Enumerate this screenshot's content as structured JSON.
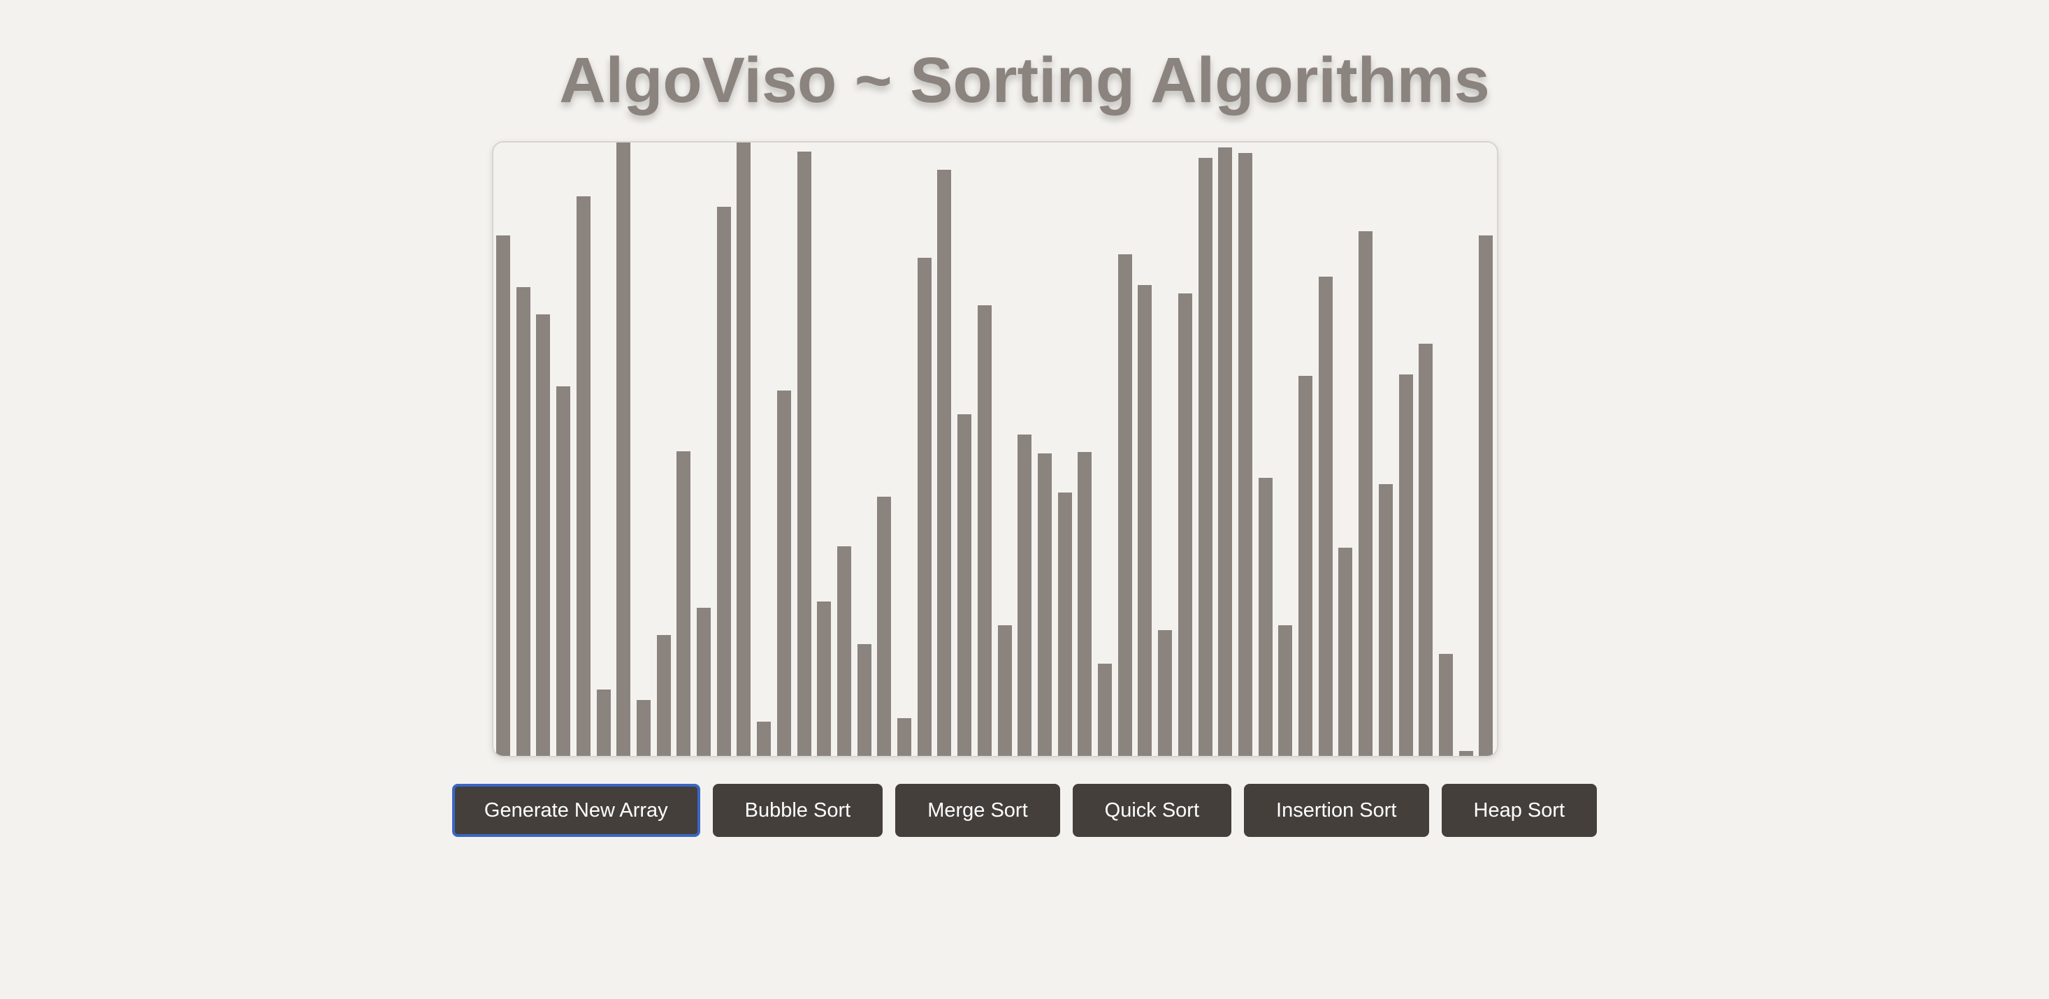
{
  "page": {
    "title": "AlgoViso ~ Sorting Algorithms",
    "bar_color": "#8a837e",
    "button_color": "#443f3b",
    "focus_color": "#3a66c4"
  },
  "chart_data": {
    "type": "bar",
    "title": "",
    "xlabel": "",
    "ylabel": "",
    "ylim": [
      0,
      1
    ],
    "values": [
      0.845,
      0.761,
      0.716,
      0.6,
      0.908,
      0.108,
      1.0,
      0.091,
      0.196,
      0.494,
      0.24,
      0.891,
      0.998,
      0.055,
      0.593,
      0.981,
      0.251,
      0.34,
      0.181,
      0.421,
      0.061,
      0.808,
      0.951,
      0.554,
      0.731,
      0.212,
      0.522,
      0.491,
      0.427,
      0.493,
      0.15,
      0.814,
      0.764,
      0.204,
      0.75,
      0.97,
      0.987,
      0.978,
      0.451,
      0.212,
      0.617,
      0.778,
      0.338,
      0.851,
      0.441,
      0.619,
      0.669,
      0.166,
      0.008,
      0.845
    ]
  },
  "controls": {
    "generate_label": "Generate New Array",
    "bubble_label": "Bubble Sort",
    "merge_label": "Merge Sort",
    "quick_label": "Quick Sort",
    "insertion_label": "Insertion Sort",
    "heap_label": "Heap Sort"
  }
}
